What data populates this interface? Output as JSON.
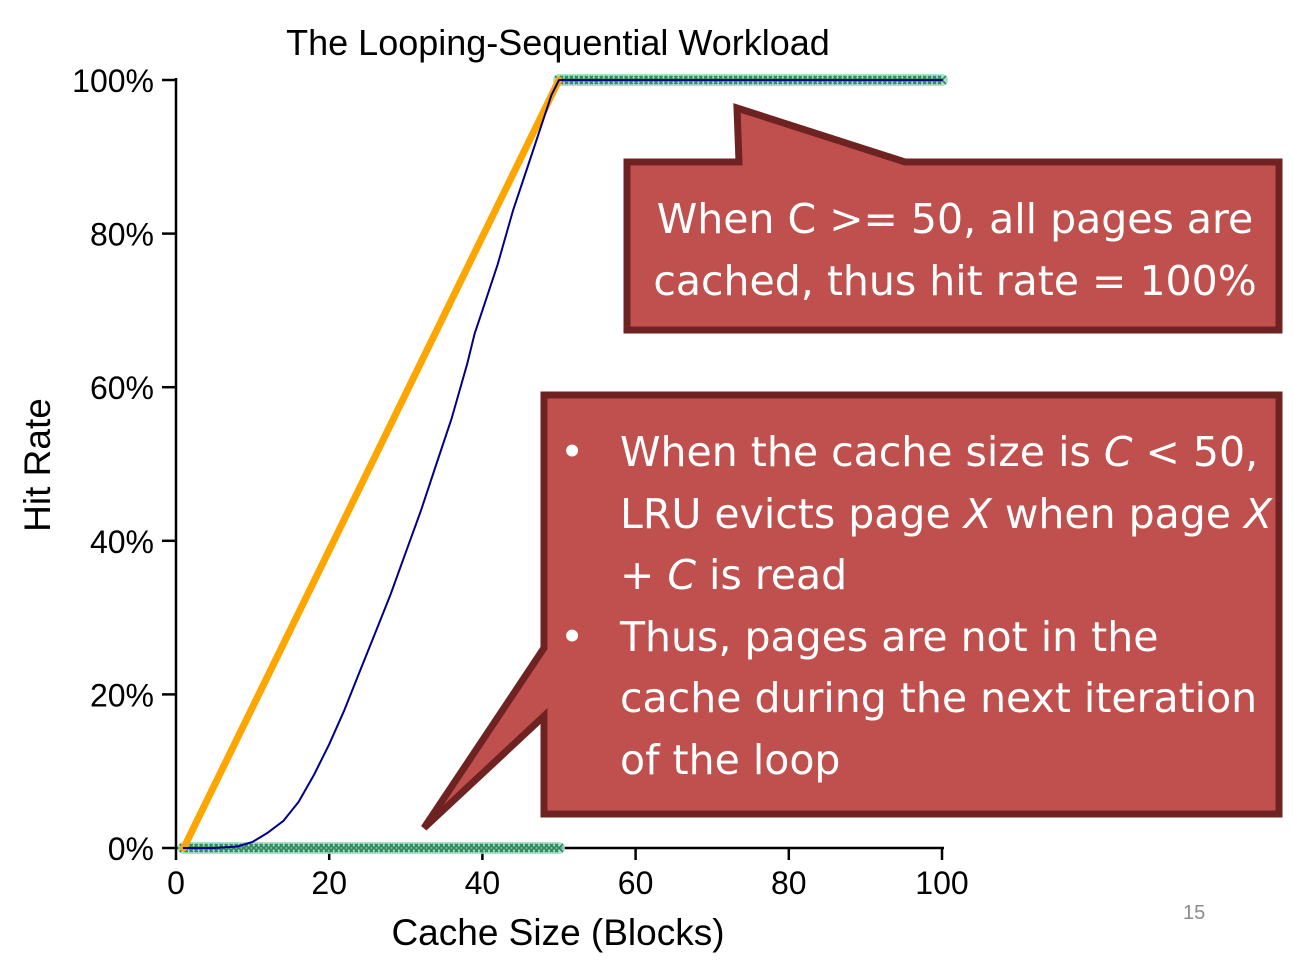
{
  "chart_data": {
    "type": "line",
    "title": "The Looping-Sequential Workload",
    "xlabel": "Cache Size (Blocks)",
    "ylabel": "Hit Rate",
    "xlim": [
      0,
      100
    ],
    "ylim": [
      0,
      100
    ],
    "x_ticks": [
      0,
      20,
      40,
      60,
      80,
      100
    ],
    "y_ticks": [
      0,
      20,
      40,
      60,
      80,
      100
    ],
    "x_tick_labels": [
      "0",
      "20",
      "40",
      "60",
      "80",
      "100"
    ],
    "y_tick_labels": [
      "0%",
      "20%",
      "40%",
      "60%",
      "80%",
      "100%"
    ],
    "grid": false,
    "legend": "none",
    "series": [
      {
        "color": "#ffa500",
        "style": "thick-line",
        "x": [
          1,
          50
        ],
        "y": [
          0,
          100
        ]
      },
      {
        "color": "#00008b",
        "style": "thin-line",
        "x": [
          1,
          5,
          8,
          10,
          12,
          14,
          16,
          18,
          20,
          22,
          24,
          26,
          28,
          30,
          32,
          34,
          36,
          38,
          39,
          40,
          42,
          44,
          46,
          48,
          49,
          50,
          60,
          70,
          80,
          90,
          100
        ],
        "y": [
          0,
          0,
          0.2,
          0.8,
          2,
          3.5,
          6,
          9.5,
          13.5,
          18,
          23,
          28,
          33,
          38.5,
          44,
          50,
          56,
          63,
          67,
          70,
          76,
          83,
          89,
          95,
          98,
          100,
          100,
          100,
          100,
          100,
          100
        ]
      },
      {
        "color": "#2e8b57",
        "style": "crosses",
        "segments": [
          {
            "x": [
              1,
              50
            ],
            "y": [
              0,
              0
            ]
          },
          {
            "x": [
              50,
              100
            ],
            "y": [
              100,
              100
            ]
          }
        ]
      }
    ]
  },
  "callouts": [
    {
      "text": "When C >= 50, all pages are cached, thus hit rate = 100%"
    },
    {
      "bullets": [
        [
          {
            "t": "When the cache size is ",
            "i": false
          },
          {
            "t": "C",
            "i": true
          },
          {
            "t": " < 50, LRU evicts page ",
            "i": false
          },
          {
            "t": "X",
            "i": true
          },
          {
            "t": " when page ",
            "i": false
          },
          {
            "t": "X + C",
            "i": true
          },
          {
            "t": " is read",
            "i": false
          }
        ],
        [
          {
            "t": "Thus, pages are not in the cache during the next iteration of the loop",
            "i": false
          }
        ]
      ]
    }
  ],
  "bullet_glyph": "•",
  "slide_number": "15",
  "colors": {
    "callout_fill": "#c0504d",
    "callout_border": "#6e2322",
    "axis": "#000000"
  }
}
